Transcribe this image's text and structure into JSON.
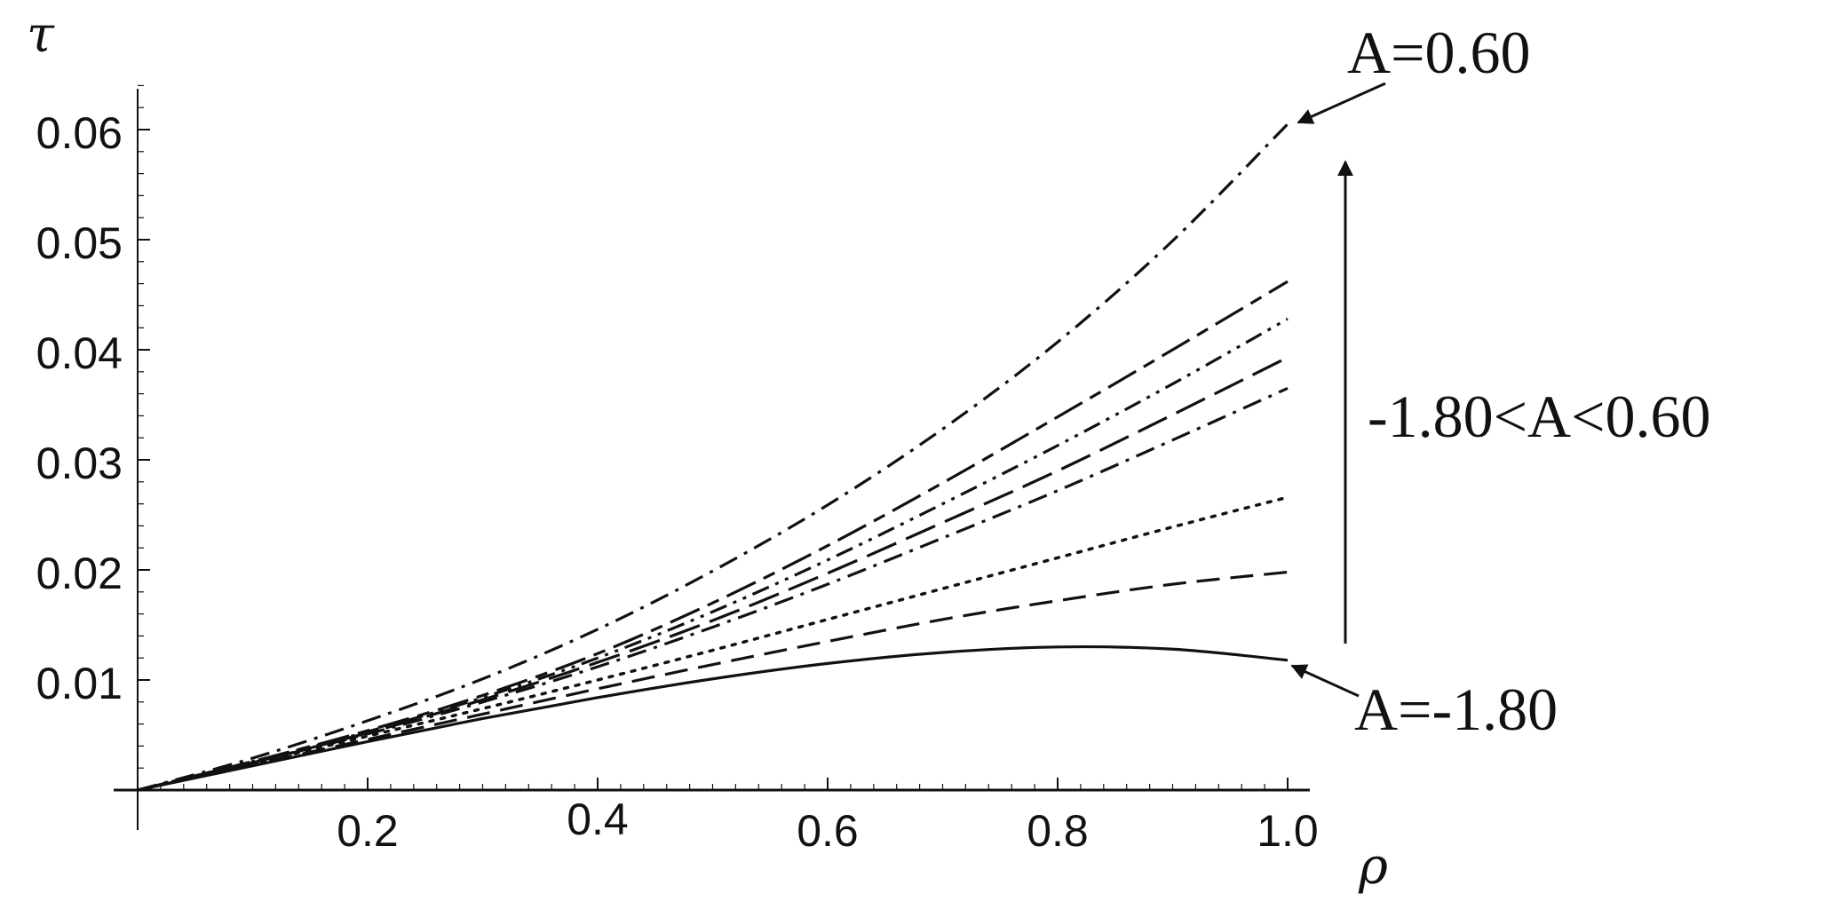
{
  "chart_data": {
    "type": "line",
    "xlabel": "ρ",
    "ylabel": "τ",
    "xlim": [
      0,
      1.0
    ],
    "ylim": [
      0,
      0.06
    ],
    "grid": false,
    "x_ticks": [
      "0.2",
      "0.4",
      "0.6",
      "0.8",
      "1.0"
    ],
    "y_ticks": [
      "0.01",
      "0.02",
      "0.03",
      "0.04",
      "0.05",
      "0.06"
    ],
    "x": [
      0,
      0.1,
      0.2,
      0.3,
      0.4,
      0.5,
      0.6,
      0.7,
      0.8,
      0.9,
      1.0
    ],
    "series": [
      {
        "style": "solid",
        "values": [
          0,
          0.0022,
          0.0044,
          0.0065,
          0.0084,
          0.0101,
          0.0115,
          0.0125,
          0.013,
          0.0128,
          0.0118
        ]
      },
      {
        "style": "dashed",
        "values": [
          0,
          0.0023,
          0.0046,
          0.0069,
          0.0092,
          0.0114,
          0.0135,
          0.0155,
          0.0172,
          0.0187,
          0.0198
        ]
      },
      {
        "style": "dotted",
        "values": [
          0,
          0.0024,
          0.0049,
          0.0074,
          0.01,
          0.0127,
          0.0155,
          0.0183,
          0.0211,
          0.0239,
          0.0266
        ]
      },
      {
        "style": "dash-dot",
        "values": [
          0,
          0.0025,
          0.0051,
          0.008,
          0.0112,
          0.0148,
          0.0187,
          0.0229,
          0.0272,
          0.0318,
          0.0365
        ]
      },
      {
        "style": "long-dash",
        "values": [
          0,
          0.0025,
          0.0052,
          0.0082,
          0.0116,
          0.0154,
          0.0197,
          0.0243,
          0.029,
          0.0341,
          0.0393
        ]
      },
      {
        "style": "dash-dot-dot",
        "values": [
          0,
          0.0026,
          0.0053,
          0.0084,
          0.012,
          0.0162,
          0.0209,
          0.026,
          0.0313,
          0.0369,
          0.0428
        ]
      },
      {
        "style": "long-dash-short",
        "values": [
          0,
          0.0026,
          0.0054,
          0.0086,
          0.0124,
          0.017,
          0.0222,
          0.0279,
          0.0339,
          0.04,
          0.0462
        ]
      },
      {
        "style": "dash-dot",
        "values": [
          0,
          0.0029,
          0.0063,
          0.0101,
          0.0146,
          0.0199,
          0.0259,
          0.0328,
          0.0407,
          0.0499,
          0.0605
        ]
      }
    ],
    "annotations": {
      "top": "A=0.60",
      "bottom": "A=-1.80",
      "range": "-1.80<A<0.60"
    }
  }
}
